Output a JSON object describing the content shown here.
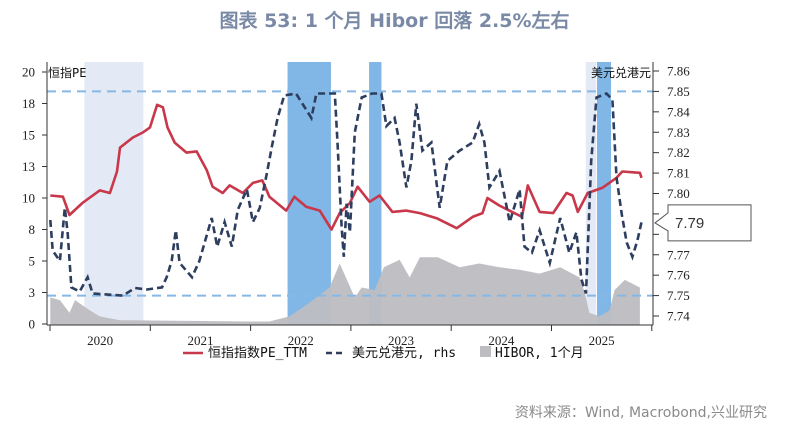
{
  "title": "图表 53: 1 个月 Hibor 回落 2.5%左右",
  "source": "资料来源：Wind, Macrobond,兴业研究",
  "chart_data": {
    "type": "line",
    "title": "图表 53: 1 个月 Hibor 回落 2.5%左右",
    "left_axis": {
      "label": "恒指PE",
      "range": [
        0,
        20
      ],
      "ticks": [
        0,
        2.5,
        5,
        7.5,
        10,
        12.5,
        15,
        17.5,
        20
      ],
      "tick_labels": [
        "0",
        "3",
        "5",
        "8",
        "10",
        "13",
        "15",
        "18",
        "20"
      ]
    },
    "right_axis": {
      "label": "美元兑港元",
      "range": [
        7.74,
        7.86
      ],
      "ticks": [
        7.74,
        7.75,
        7.76,
        7.77,
        7.8,
        7.81,
        7.82,
        7.83,
        7.84,
        7.85,
        7.86
      ],
      "tick_labels": [
        "7.74",
        "7.75",
        "7.76",
        "7.77",
        "7.80",
        "7.81",
        "7.82",
        "7.83",
        "7.84",
        "7.85",
        "7.86"
      ]
    },
    "x_axis": {
      "range": [
        "2020-01-01",
        "2026-01-01"
      ],
      "tick_labels": [
        "2020",
        "2021",
        "2022",
        "2023",
        "2024",
        "2025"
      ]
    },
    "callout": {
      "label": "7.79",
      "value": 7.79
    },
    "reference_lines_rhs": [
      7.85,
      7.75
    ],
    "grid": false,
    "legend_placement": "bottom",
    "shaded_periods": [
      {
        "start": "2020-05-05",
        "end": "2020-12-06",
        "style": "light",
        "color": "#e4eaf5"
      },
      {
        "start": "2022-05-15",
        "end": "2022-10-20",
        "style": "strong",
        "color": "#6aaae3"
      },
      {
        "start": "2023-03-08",
        "end": "2023-04-22",
        "style": "strong",
        "color": "#6aaae3"
      },
      {
        "start": "2025-05-05",
        "end": "2025-06-12",
        "style": "light",
        "color": "#e4eaf5"
      },
      {
        "start": "2025-06-15",
        "end": "2025-08-05",
        "style": "strong",
        "color": "#6aaae3"
      }
    ],
    "series": [
      {
        "name": "恒指指数PE_TTM",
        "axis": "left",
        "style": "solid",
        "color": "#c8374a",
        "points": [
          [
            "2020-01-02",
            10.2
          ],
          [
            "2020-02-17",
            10.1
          ],
          [
            "2020-03-12",
            8.65
          ],
          [
            "2020-04-28",
            9.6
          ],
          [
            "2020-06-30",
            10.6
          ],
          [
            "2020-08-06",
            10.4
          ],
          [
            "2020-09-01",
            12.1
          ],
          [
            "2020-09-12",
            14.0
          ],
          [
            "2020-10-29",
            14.8
          ],
          [
            "2020-12-04",
            15.2
          ],
          [
            "2020-12-30",
            15.6
          ],
          [
            "2021-01-25",
            17.4
          ],
          [
            "2021-02-15",
            17.2
          ],
          [
            "2021-03-04",
            15.6
          ],
          [
            "2021-03-30",
            14.4
          ],
          [
            "2021-05-12",
            13.6
          ],
          [
            "2021-06-18",
            13.7
          ],
          [
            "2021-07-25",
            12.2
          ],
          [
            "2021-08-15",
            10.9
          ],
          [
            "2021-09-21",
            10.4
          ],
          [
            "2021-10-16",
            11.0
          ],
          [
            "2021-12-03",
            10.4
          ],
          [
            "2022-01-09",
            11.2
          ],
          [
            "2022-02-12",
            11.4
          ],
          [
            "2022-03-10",
            10.1
          ],
          [
            "2022-05-10",
            9.0
          ],
          [
            "2022-06-09",
            10.1
          ],
          [
            "2022-07-22",
            9.3
          ],
          [
            "2022-09-09",
            9.0
          ],
          [
            "2022-10-22",
            7.5
          ],
          [
            "2022-11-21",
            8.8
          ],
          [
            "2022-12-28",
            9.6
          ],
          [
            "2023-01-25",
            10.9
          ],
          [
            "2023-03-10",
            9.7
          ],
          [
            "2023-04-15",
            10.2
          ],
          [
            "2023-06-01",
            8.9
          ],
          [
            "2023-07-22",
            9.0
          ],
          [
            "2023-09-09",
            8.8
          ],
          [
            "2023-11-09",
            8.4
          ],
          [
            "2024-01-21",
            7.6
          ],
          [
            "2024-03-19",
            8.5
          ],
          [
            "2024-04-24",
            8.8
          ],
          [
            "2024-05-12",
            10.0
          ],
          [
            "2024-06-25",
            9.4
          ],
          [
            "2024-09-15",
            8.5
          ],
          [
            "2024-10-06",
            11.0
          ],
          [
            "2024-11-18",
            8.9
          ],
          [
            "2025-01-06",
            8.8
          ],
          [
            "2025-02-24",
            10.4
          ],
          [
            "2025-03-18",
            10.2
          ],
          [
            "2025-04-06",
            8.9
          ],
          [
            "2025-05-12",
            10.4
          ],
          [
            "2025-07-04",
            10.8
          ],
          [
            "2025-08-25",
            11.6
          ],
          [
            "2025-09-15",
            12.1
          ],
          [
            "2025-11-18",
            12.0
          ],
          [
            "2025-11-24",
            11.6
          ]
        ]
      },
      {
        "name": "美元兑港元, rhs",
        "axis": "right",
        "style": "dashed",
        "color": "#2d3e5e",
        "points": [
          [
            "2020-01-02",
            7.787
          ],
          [
            "2020-01-11",
            7.772
          ],
          [
            "2020-02-06",
            7.767
          ],
          [
            "2020-02-24",
            7.793
          ],
          [
            "2020-03-05",
            7.781
          ],
          [
            "2020-03-19",
            7.754
          ],
          [
            "2020-04-18",
            7.752
          ],
          [
            "2020-05-17",
            7.759
          ],
          [
            "2020-06-04",
            7.751
          ],
          [
            "2020-09-22",
            7.75
          ],
          [
            "2020-11-06",
            7.7537
          ],
          [
            "2020-12-19",
            7.753
          ],
          [
            "2021-02-12",
            7.754
          ],
          [
            "2021-03-01",
            7.759
          ],
          [
            "2021-03-19",
            7.767
          ],
          [
            "2021-04-03",
            7.782
          ],
          [
            "2021-04-17",
            7.766
          ],
          [
            "2021-06-01",
            7.759
          ],
          [
            "2021-06-28",
            7.767
          ],
          [
            "2021-08-12",
            7.788
          ],
          [
            "2021-09-01",
            7.774
          ],
          [
            "2021-09-28",
            7.786
          ],
          [
            "2021-10-24",
            7.774
          ],
          [
            "2021-11-15",
            7.792
          ],
          [
            "2021-12-18",
            7.802
          ],
          [
            "2022-01-09",
            7.786
          ],
          [
            "2022-02-03",
            7.793
          ],
          [
            "2022-03-01",
            7.81
          ],
          [
            "2022-03-19",
            7.823
          ],
          [
            "2022-04-09",
            7.837
          ],
          [
            "2022-05-03",
            7.848
          ],
          [
            "2022-06-15",
            7.849
          ],
          [
            "2022-08-10",
            7.837
          ],
          [
            "2022-08-28",
            7.849
          ],
          [
            "2022-11-03",
            7.849
          ],
          [
            "2022-11-13",
            7.825
          ],
          [
            "2022-11-28",
            7.784
          ],
          [
            "2022-12-06",
            7.769
          ],
          [
            "2022-12-16",
            7.795
          ],
          [
            "2022-12-28",
            7.781
          ],
          [
            "2023-01-15",
            7.83
          ],
          [
            "2023-02-09",
            7.847
          ],
          [
            "2023-03-19",
            7.849
          ],
          [
            "2023-04-22",
            7.849
          ],
          [
            "2023-05-10",
            7.833
          ],
          [
            "2023-06-09",
            7.837
          ],
          [
            "2023-06-27",
            7.825
          ],
          [
            "2023-07-22",
            7.803
          ],
          [
            "2023-08-09",
            7.816
          ],
          [
            "2023-08-27",
            7.844
          ],
          [
            "2023-09-18",
            7.821
          ],
          [
            "2023-10-21",
            7.825
          ],
          [
            "2023-11-20",
            7.793
          ],
          [
            "2023-12-18",
            7.816
          ],
          [
            "2024-02-01",
            7.821
          ],
          [
            "2024-03-19",
            7.825
          ],
          [
            "2024-04-12",
            7.834
          ],
          [
            "2024-05-01",
            7.825
          ],
          [
            "2024-05-19",
            7.803
          ],
          [
            "2024-06-25",
            7.811
          ],
          [
            "2024-08-01",
            7.786
          ],
          [
            "2024-09-06",
            7.802
          ],
          [
            "2024-09-24",
            7.774
          ],
          [
            "2024-10-21",
            7.771
          ],
          [
            "2024-11-18",
            7.782
          ],
          [
            "2024-12-25",
            7.766
          ],
          [
            "2025-02-01",
            7.788
          ],
          [
            "2025-03-06",
            7.771
          ],
          [
            "2025-04-01",
            7.781
          ],
          [
            "2025-04-19",
            7.758
          ],
          [
            "2025-05-06",
            7.751
          ],
          [
            "2025-05-25",
            7.816
          ],
          [
            "2025-06-13",
            7.847
          ],
          [
            "2025-07-19",
            7.849
          ],
          [
            "2025-08-10",
            7.846
          ],
          [
            "2025-08-25",
            7.808
          ],
          [
            "2025-09-13",
            7.79
          ],
          [
            "2025-10-01",
            7.776
          ],
          [
            "2025-10-22",
            7.769
          ],
          [
            "2025-11-09",
            7.777
          ],
          [
            "2025-11-24",
            7.786
          ]
        ]
      },
      {
        "name": "HIBOR, 1个月",
        "axis": "left",
        "style": "area",
        "color": "#bdbdc1",
        "points": [
          [
            "2020-01-02",
            2.1
          ],
          [
            "2020-02-06",
            1.9
          ],
          [
            "2020-03-12",
            0.9
          ],
          [
            "2020-04-01",
            1.9
          ],
          [
            "2020-05-24",
            1.1
          ],
          [
            "2020-06-30",
            0.6
          ],
          [
            "2020-09-12",
            0.3
          ],
          [
            "2021-12-28",
            0.2
          ],
          [
            "2022-03-10",
            0.2
          ],
          [
            "2022-05-22",
            0.6
          ],
          [
            "2022-08-03",
            1.7
          ],
          [
            "2022-10-15",
            2.9
          ],
          [
            "2022-11-21",
            4.8
          ],
          [
            "2023-01-15",
            2.1
          ],
          [
            "2023-02-09",
            2.9
          ],
          [
            "2023-03-28",
            2.7
          ],
          [
            "2023-05-01",
            4.5
          ],
          [
            "2023-06-27",
            5.1
          ],
          [
            "2023-08-03",
            3.7
          ],
          [
            "2023-09-09",
            5.3
          ],
          [
            "2023-11-13",
            5.3
          ],
          [
            "2024-02-01",
            4.5
          ],
          [
            "2024-04-12",
            4.8
          ],
          [
            "2024-06-25",
            4.5
          ],
          [
            "2024-09-06",
            4.3
          ],
          [
            "2024-11-18",
            4.0
          ],
          [
            "2025-02-01",
            4.5
          ],
          [
            "2025-04-12",
            3.7
          ],
          [
            "2025-05-01",
            2.5
          ],
          [
            "2025-05-18",
            0.9
          ],
          [
            "2025-06-24",
            0.6
          ],
          [
            "2025-07-31",
            1.1
          ],
          [
            "2025-08-18",
            2.7
          ],
          [
            "2025-09-24",
            3.5
          ],
          [
            "2025-11-18",
            2.9
          ]
        ]
      }
    ]
  }
}
